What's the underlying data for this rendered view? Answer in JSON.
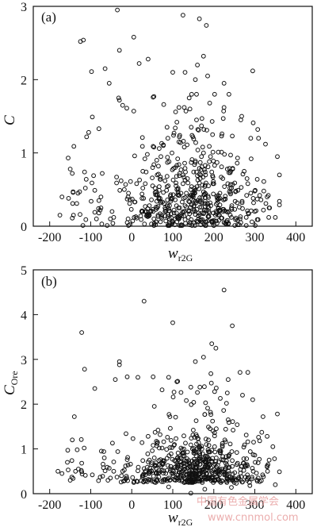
{
  "chart_data": [
    {
      "type": "scatter",
      "panel_label": "(a)",
      "ylabel": "C",
      "ylabel_sub": "",
      "xlabel": "w",
      "xlabel_sub": "r2G",
      "xlim": [
        -240,
        440
      ],
      "ylim": [
        0,
        3
      ],
      "xticks": [
        -200,
        -100,
        0,
        100,
        200,
        300,
        400
      ],
      "yticks": [
        0,
        1,
        2,
        3
      ],
      "marker": "open-circle",
      "color": "#111111",
      "highlights": [
        [
          -35,
          2.95
        ],
        [
          125,
          2.88
        ],
        [
          165,
          2.83
        ],
        [
          182,
          2.74
        ],
        [
          -125,
          2.52
        ],
        [
          -118,
          2.54
        ],
        [
          5,
          2.58
        ],
        [
          -30,
          2.4
        ],
        [
          40,
          2.28
        ],
        [
          -98,
          2.11
        ],
        [
          -65,
          2.15
        ],
        [
          18,
          2.22
        ],
        [
          175,
          2.32
        ],
        [
          160,
          2.2
        ],
        [
          130,
          2.1
        ],
        [
          100,
          2.1
        ],
        [
          185,
          2.05
        ],
        [
          155,
          2.0
        ],
        [
          225,
          1.95
        ],
        [
          295,
          2.12
        ],
        [
          -55,
          1.95
        ],
        [
          -30,
          1.72
        ],
        [
          -22,
          1.65
        ],
        [
          115,
          1.62
        ],
        [
          140,
          1.75
        ],
        [
          190,
          1.68
        ],
        [
          225,
          1.62
        ],
        [
          268,
          1.5
        ],
        [
          355,
          0.95
        ],
        [
          350,
          0.12
        ],
        [
          330,
          0.4
        ],
        [
          322,
          0.48
        ],
        [
          -105,
          1.28
        ],
        [
          -110,
          1.22
        ],
        [
          -80,
          1.33
        ],
        [
          -155,
          0.93
        ],
        [
          -170,
          0.4
        ],
        [
          -175,
          0.15
        ],
        [
          -150,
          0.78
        ],
        [
          -145,
          0.72
        ]
      ],
      "scatter_seed": 17,
      "scatter_count": 600
    },
    {
      "type": "scatter",
      "panel_label": "(b)",
      "ylabel": "C",
      "ylabel_sub": "Ore",
      "xlabel": "w",
      "xlabel_sub": "r2G",
      "xlim": [
        -240,
        440
      ],
      "ylim": [
        0,
        5
      ],
      "xticks": [
        -200,
        -100,
        0,
        100,
        200,
        300,
        400
      ],
      "yticks": [
        0,
        1,
        2,
        3,
        4,
        5
      ],
      "marker": "open-circle",
      "color": "#111111",
      "highlights": [
        [
          225,
          4.55
        ],
        [
          30,
          4.3
        ],
        [
          100,
          3.82
        ],
        [
          245,
          3.75
        ],
        [
          -122,
          3.6
        ],
        [
          195,
          3.35
        ],
        [
          205,
          3.25
        ],
        [
          -115,
          2.78
        ],
        [
          -30,
          2.95
        ],
        [
          -30,
          2.88
        ],
        [
          175,
          3.05
        ],
        [
          155,
          2.95
        ],
        [
          -90,
          2.35
        ],
        [
          -40,
          2.55
        ],
        [
          15,
          2.6
        ],
        [
          90,
          2.6
        ],
        [
          110,
          2.5
        ],
        [
          235,
          2.55
        ],
        [
          270,
          2.2
        ],
        [
          295,
          2.1
        ],
        [
          -140,
          1.72
        ],
        [
          355,
          1.78
        ],
        [
          -180,
          0.5
        ],
        [
          -170,
          0.45
        ],
        [
          350,
          0.2
        ],
        [
          335,
          0.75
        ],
        [
          330,
          0.6
        ],
        [
          -150,
          0.3
        ],
        [
          -130,
          0.55
        ]
      ],
      "scatter_seed": 29,
      "scatter_count": 650
    }
  ],
  "watermark": {
    "line1": "中国有色金属学会",
    "line2": "www.cnnmol.com"
  }
}
